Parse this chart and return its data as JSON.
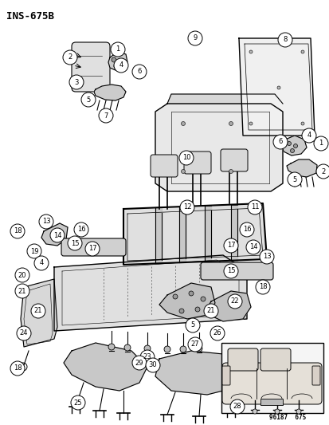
{
  "title": "INS-675B",
  "footer": "96187  675",
  "bg_color": "#ffffff",
  "fig_width": 4.14,
  "fig_height": 5.33,
  "dpi": 100
}
